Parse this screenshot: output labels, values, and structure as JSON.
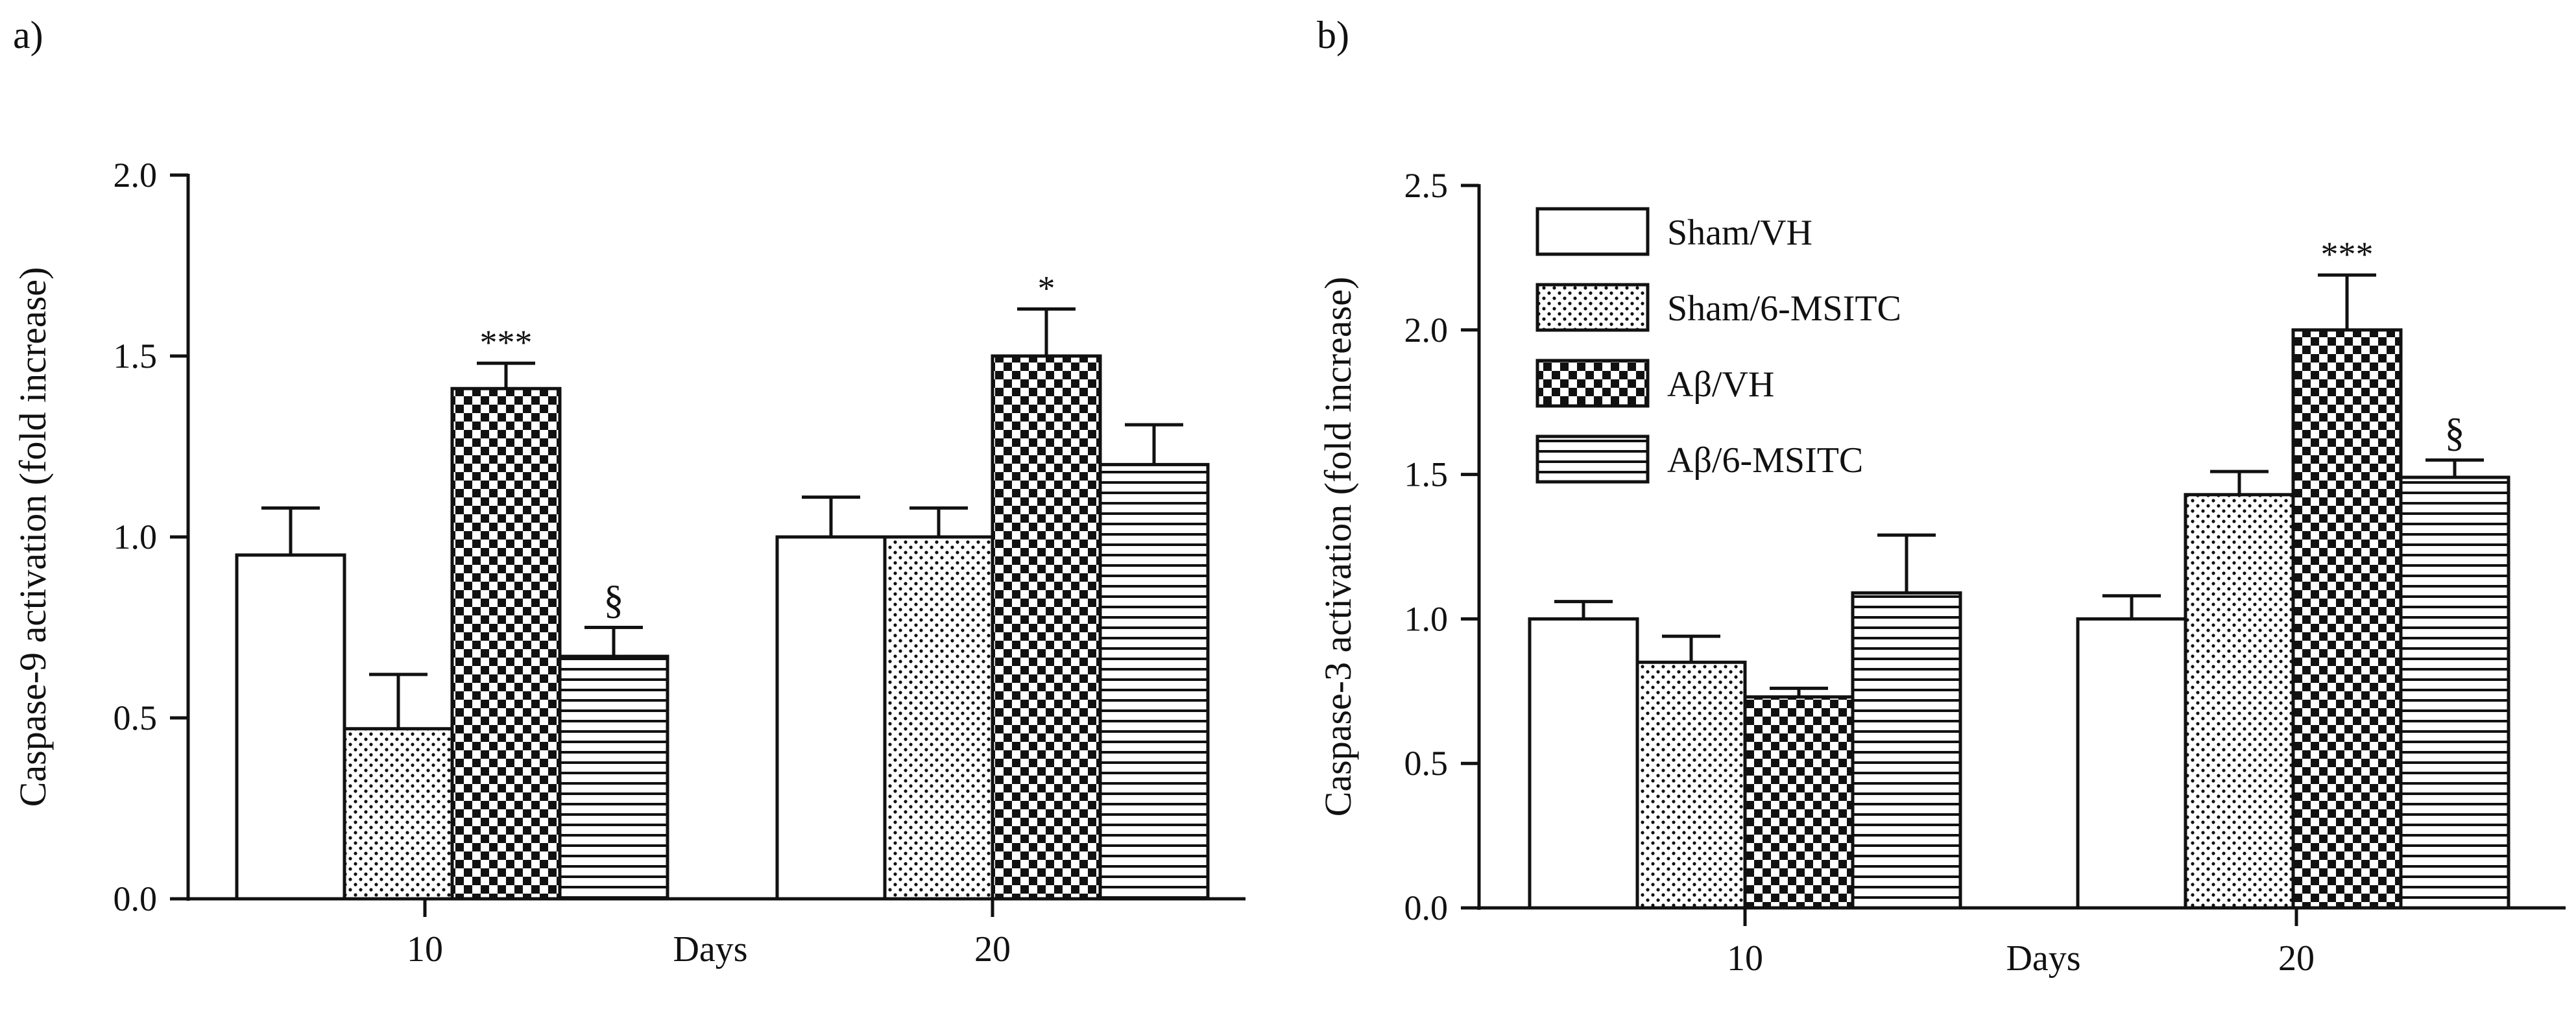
{
  "colors": {
    "ink": "#111111",
    "background": "#ffffff"
  },
  "pattern_names": {
    "Sham/VH": "open",
    "Sham/6-MSITC": "dotted",
    "Aβ/VH": "checkerboard",
    "Aβ/6-MSITC": "horizontal-stripes"
  },
  "chart_data": [
    {
      "panel_label": "a)",
      "type": "bar",
      "xlabel": "Days",
      "ylabel": "Caspase-9 activation (fold increase)",
      "ylim": [
        0,
        2.0
      ],
      "yticks": [
        "0.0",
        "0.5",
        "1.0",
        "1.5",
        "2.0"
      ],
      "categories": [
        "10",
        "20"
      ],
      "legend": null,
      "series": [
        {
          "name": "Sham/VH",
          "pattern": "open",
          "values": [
            0.95,
            1.0
          ],
          "errors": [
            0.13,
            0.11
          ],
          "annotations": [
            "",
            ""
          ]
        },
        {
          "name": "Sham/6-MSITC",
          "pattern": "dotted",
          "values": [
            0.47,
            1.0
          ],
          "errors": [
            0.15,
            0.08
          ],
          "annotations": [
            "",
            ""
          ]
        },
        {
          "name": "Aβ/VH",
          "pattern": "checkerboard",
          "values": [
            1.41,
            1.5
          ],
          "errors": [
            0.07,
            0.13
          ],
          "annotations": [
            "***",
            "*"
          ]
        },
        {
          "name": "Aβ/6-MSITC",
          "pattern": "horizontal-stripes",
          "values": [
            0.67,
            1.2
          ],
          "errors": [
            0.08,
            0.11
          ],
          "annotations": [
            "§",
            ""
          ]
        }
      ]
    },
    {
      "panel_label": "b)",
      "type": "bar",
      "xlabel": "Days",
      "ylabel": "Caspase-3 activation (fold increase)",
      "ylim": [
        0,
        2.5
      ],
      "yticks": [
        "0.0",
        "0.5",
        "1.0",
        "1.5",
        "2.0",
        "2.5"
      ],
      "categories": [
        "10",
        "20"
      ],
      "legend": {
        "placement": "top-left",
        "entries": [
          "Sham/VH",
          "Sham/6-MSITC",
          "Aβ/VH",
          "Aβ/6-MSITC"
        ]
      },
      "series": [
        {
          "name": "Sham/VH",
          "pattern": "open",
          "values": [
            1.0,
            1.0
          ],
          "errors": [
            0.06,
            0.08
          ],
          "annotations": [
            "",
            ""
          ]
        },
        {
          "name": "Sham/6-MSITC",
          "pattern": "dotted",
          "values": [
            0.85,
            1.43
          ],
          "errors": [
            0.09,
            0.08
          ],
          "annotations": [
            "",
            ""
          ]
        },
        {
          "name": "Aβ/VH",
          "pattern": "checkerboard",
          "values": [
            0.73,
            2.0
          ],
          "errors": [
            0.03,
            0.19
          ],
          "annotations": [
            "",
            "***"
          ]
        },
        {
          "name": "Aβ/6-MSITC",
          "pattern": "horizontal-stripes",
          "values": [
            1.09,
            1.49
          ],
          "errors": [
            0.2,
            0.06
          ],
          "annotations": [
            "",
            "§"
          ]
        }
      ]
    }
  ]
}
